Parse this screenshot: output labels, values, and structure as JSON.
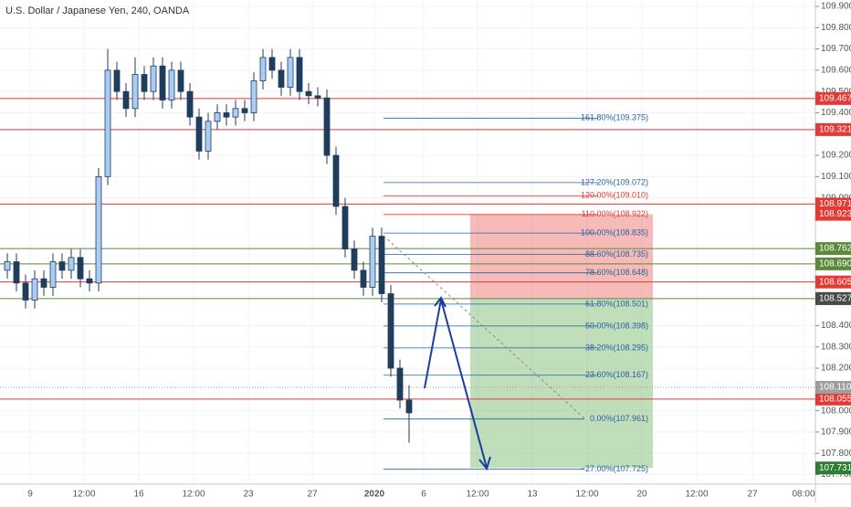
{
  "chart_data": {
    "type": "candlestick",
    "title": "U.S. Dollar / Japanese Yen, 240, OANDA",
    "ylim": [
      107.655,
      109.93
    ],
    "yticks": [
      {
        "value": 109.9,
        "label": "109.900"
      },
      {
        "value": 109.8,
        "label": "109.800"
      },
      {
        "value": 109.7,
        "label": "109.700"
      },
      {
        "value": 109.6,
        "label": "109.600"
      },
      {
        "value": 109.5,
        "label": "109.500"
      },
      {
        "value": 109.4,
        "label": "109.400"
      },
      {
        "value": 109.2,
        "label": "109.200"
      },
      {
        "value": 109.1,
        "label": "109.100"
      },
      {
        "value": 109.0,
        "label": "109.000"
      },
      {
        "value": 108.4,
        "label": "108.400"
      },
      {
        "value": 108.3,
        "label": "108.300"
      },
      {
        "value": 108.2,
        "label": "108.200"
      },
      {
        "value": 108.0,
        "label": "108.000"
      },
      {
        "value": 107.9,
        "label": "107.900"
      },
      {
        "value": 107.8,
        "label": "107.800"
      },
      {
        "value": 107.7,
        "label": "107.700"
      }
    ],
    "x_labels": [
      "9",
      "12:00",
      "16",
      "12:00",
      "23",
      "27",
      "2020",
      "6",
      "12:00",
      "13",
      "12:00",
      "20",
      "12:00",
      "27",
      "08:00"
    ],
    "up_color": "#a9cdf5",
    "down_color": "#1f3d5c",
    "open": [
      108.66,
      108.7,
      108.6,
      108.52,
      108.62,
      108.58,
      108.7,
      108.66,
      108.72,
      108.62,
      108.6,
      109.1,
      109.6,
      109.5,
      109.42,
      109.58,
      109.5,
      109.62,
      109.46,
      109.6,
      109.5,
      109.38,
      109.22,
      109.36,
      109.4,
      109.38,
      109.42,
      109.4,
      109.55,
      109.66,
      109.6,
      109.52,
      109.66,
      109.5,
      109.48,
      109.47,
      109.2,
      108.96,
      108.76,
      108.66,
      108.58,
      108.82,
      108.55,
      108.2,
      108.05
    ],
    "high": [
      108.74,
      108.74,
      108.64,
      108.66,
      108.66,
      108.74,
      108.74,
      108.76,
      108.76,
      108.66,
      109.14,
      109.7,
      109.64,
      109.54,
      109.66,
      109.62,
      109.66,
      109.66,
      109.64,
      109.64,
      109.54,
      109.42,
      109.4,
      109.44,
      109.44,
      109.46,
      109.46,
      109.59,
      109.7,
      109.7,
      109.64,
      109.7,
      109.7,
      109.54,
      109.52,
      109.51,
      109.24,
      109.0,
      108.8,
      108.7,
      108.86,
      108.86,
      108.59,
      108.24,
      108.12
    ],
    "low": [
      108.62,
      108.56,
      108.48,
      108.48,
      108.54,
      108.54,
      108.62,
      108.62,
      108.58,
      108.56,
      108.56,
      109.06,
      109.46,
      109.38,
      109.38,
      109.46,
      109.46,
      109.42,
      109.42,
      109.46,
      109.34,
      109.18,
      109.18,
      109.32,
      109.34,
      109.34,
      109.36,
      109.36,
      109.51,
      109.56,
      109.48,
      109.48,
      109.46,
      109.44,
      109.43,
      109.16,
      108.92,
      108.72,
      108.62,
      108.54,
      108.54,
      108.51,
      108.16,
      108.01,
      107.85
    ],
    "close": [
      108.7,
      108.6,
      108.52,
      108.62,
      108.58,
      108.7,
      108.66,
      108.72,
      108.62,
      108.6,
      109.1,
      109.6,
      109.5,
      109.42,
      109.58,
      109.5,
      109.62,
      109.46,
      109.6,
      109.5,
      109.38,
      109.22,
      109.36,
      109.4,
      109.38,
      109.42,
      109.4,
      109.55,
      109.66,
      109.6,
      109.52,
      109.66,
      109.5,
      109.48,
      109.47,
      109.2,
      108.96,
      108.76,
      108.66,
      108.58,
      108.82,
      108.55,
      108.2,
      108.05,
      107.99
    ],
    "levels": [
      {
        "value": 109.467,
        "label": "109.467",
        "color": "#e53935"
      },
      {
        "value": 109.321,
        "label": "109.321",
        "color": "#e53935"
      },
      {
        "value": 108.971,
        "label": "108.971",
        "color": "#e53935"
      },
      {
        "value": 108.762,
        "label": "108.762",
        "color": "#5b8a3a"
      },
      {
        "value": 108.69,
        "label": "108.690",
        "color": "#5b8a3a"
      },
      {
        "value": 108.605,
        "label": "108.605",
        "color": "#e53935"
      },
      {
        "value": 108.527,
        "label": "108.527",
        "color": "#5b8a3a"
      },
      {
        "value": 108.055,
        "label": "108.055",
        "color": "#e53935"
      }
    ],
    "axis_markers": [
      {
        "value": 108.923,
        "label": "108.923",
        "color": "#e53935"
      },
      {
        "value": 108.527,
        "label": "108.527",
        "color": "#4a4a4a"
      },
      {
        "value": 108.11,
        "label": "108.110",
        "color": "#9e9e9e"
      },
      {
        "value": 107.731,
        "label": "107.731",
        "color": "#2e7d32"
      }
    ],
    "fib_levels": [
      {
        "value": 109.375,
        "label": "161.80%(109.375)",
        "color": "#2962a0"
      },
      {
        "value": 109.072,
        "label": "127.20%(109.072)",
        "color": "#2962a0"
      },
      {
        "value": 109.01,
        "label": "120.00%(109.010)",
        "color": "#e53935"
      },
      {
        "value": 108.922,
        "label": "110.00%(108.922)",
        "color": "#e53935"
      },
      {
        "value": 108.835,
        "label": "100.00%(108.835)",
        "color": "#2962a0"
      },
      {
        "value": 108.735,
        "label": "88.60%(108.735)",
        "color": "#2962a0"
      },
      {
        "value": 108.648,
        "label": "78.60%(108.648)",
        "color": "#2962a0"
      },
      {
        "value": 108.501,
        "label": "61.80%(108.501)",
        "color": "#2962a0"
      },
      {
        "value": 108.398,
        "label": "50.00%(108.398)",
        "color": "#2962a0"
      },
      {
        "value": 108.295,
        "label": "38.20%(108.295)",
        "color": "#2962a0"
      },
      {
        "value": 108.167,
        "label": "23.60%(108.167)",
        "color": "#2962a0"
      },
      {
        "value": 107.961,
        "label": "0.00%(107.961)",
        "color": "#2962a0"
      },
      {
        "value": 107.725,
        "label": "−27.00%(107.725)",
        "color": "#2962a0"
      }
    ]
  }
}
